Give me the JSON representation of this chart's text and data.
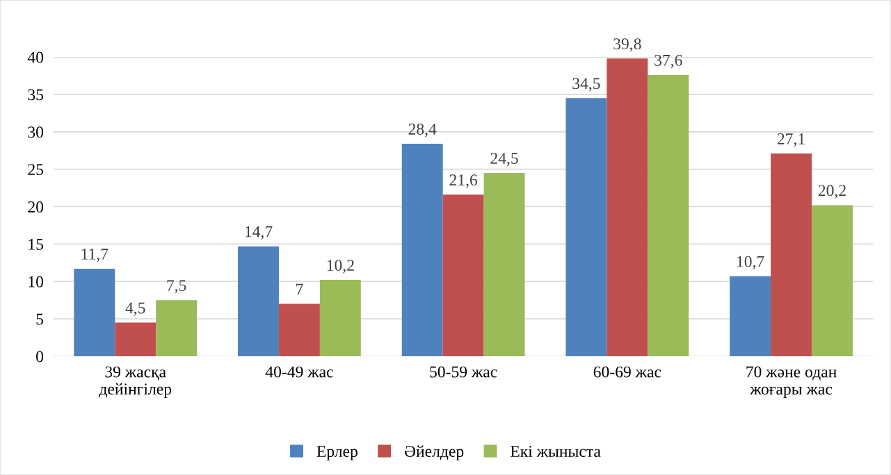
{
  "chart_data": {
    "type": "bar",
    "categories": [
      "39 жасқа\nдейінгілер",
      "40-49 жас",
      "50-59 жас",
      "60-69 жас",
      "70 және одан\nжоғары жас"
    ],
    "series": [
      {
        "name": "Ерлер",
        "color": "#4f81bd",
        "values": [
          11.7,
          14.7,
          28.4,
          34.5,
          10.7
        ],
        "value_labels": [
          "11,7",
          "14,7",
          "28,4",
          "34,5",
          "10,7"
        ]
      },
      {
        "name": "Әйелдер",
        "color": "#c0504d",
        "values": [
          4.5,
          7,
          21.6,
          39.8,
          27.1
        ],
        "value_labels": [
          "4,5",
          "7",
          "21,6",
          "39,8",
          "27,1"
        ]
      },
      {
        "name": "Екі жыныста",
        "color": "#9bbb59",
        "values": [
          7.5,
          10.2,
          24.5,
          37.6,
          20.2
        ],
        "value_labels": [
          "7,5",
          "10,2",
          "24,5",
          "37,6",
          "20,2"
        ]
      }
    ],
    "ylim": [
      0,
      40
    ],
    "yticks": [
      0,
      5,
      10,
      15,
      20,
      25,
      30,
      35,
      40
    ],
    "grid": "y",
    "legend": "bottom"
  }
}
